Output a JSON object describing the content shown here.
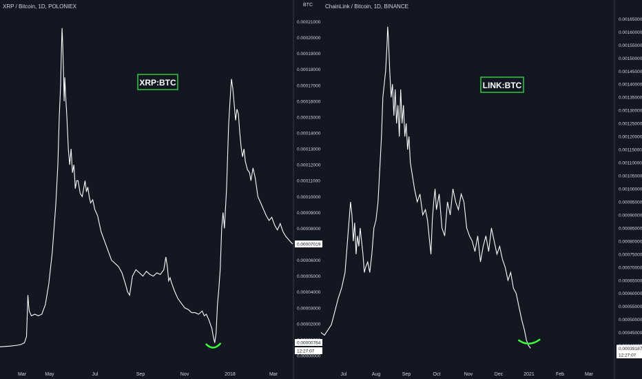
{
  "colors": {
    "background": "#131722",
    "line": "#ffffff",
    "axis_text": "#d1d4dc",
    "divider": "#363a45",
    "label_border": "#2ecc40",
    "annotation": "#3bff3b",
    "badge_bg": "#ffffff",
    "badge_text": "#131722"
  },
  "chart_data": [
    {
      "type": "line",
      "title": "XRP / Bitcoin, 1D, POLONIEX",
      "label_box": "XRP:BTC",
      "yaxis_unit": "BTC",
      "x_ticks": [
        "Mar",
        "May",
        "Jul",
        "Sep",
        "Nov",
        "2018",
        "Mar"
      ],
      "y_ticks": [
        "0.00021000",
        "0.00020000",
        "0.00019000",
        "0.00018000",
        "0.00017000",
        "0.00016000",
        "0.00015000",
        "0.00014000",
        "0.00013000",
        "0.00012000",
        "0.00011000",
        "0.00010000",
        "0.00009000",
        "0.00008000",
        "0.00007000",
        "0.00006000",
        "0.00005000",
        "0.00004000",
        "0.00003000",
        "0.00002000",
        "0.00001000",
        "0.00000000"
      ],
      "ylim": [
        0,
        0.000215
      ],
      "xlim": [
        0,
        420
      ],
      "price_badge": "0.00007019",
      "extra_badges": [
        "0.00000764",
        "12:27:07"
      ],
      "x": [
        0,
        15,
        25,
        30,
        35,
        38,
        40,
        41,
        42,
        45,
        50,
        55,
        60,
        65,
        70,
        75,
        80,
        83,
        85,
        87,
        88,
        89,
        90,
        91,
        92,
        93,
        94,
        96,
        98,
        100,
        102,
        104,
        106,
        108,
        110,
        112,
        115,
        118,
        120,
        122,
        124,
        126,
        128,
        130,
        133,
        136,
        140,
        145,
        150,
        155,
        160,
        165,
        170,
        175,
        180,
        183,
        186,
        190,
        195,
        200,
        205,
        210,
        215,
        220,
        225,
        230,
        235,
        238,
        240,
        242,
        244,
        246,
        250,
        255,
        260,
        265,
        270,
        275,
        280,
        285,
        290,
        293,
        296,
        300,
        304,
        306,
        308,
        310,
        312,
        314,
        316,
        318,
        320,
        322,
        325,
        328,
        330,
        332,
        334,
        336,
        338,
        340,
        342,
        344,
        346,
        348,
        350,
        352,
        355,
        358,
        360,
        363,
        366,
        370,
        374,
        378,
        382,
        386,
        390,
        394,
        398,
        402,
        406,
        410,
        414,
        418,
        420
      ],
      "y": [
        5.5e-06,
        6e-06,
        6.5e-06,
        7e-06,
        8e-06,
        1.2e-05,
        3.8e-05,
        3.2e-05,
        2.8e-05,
        2.5e-05,
        2.6e-05,
        2.5e-05,
        2.6e-05,
        3.2e-05,
        4.5e-05,
        6.5e-05,
        9.5e-05,
        0.00012,
        0.00015,
        0.00017,
        0.00019,
        0.000206,
        0.000195,
        0.00018,
        0.00016,
        0.000175,
        0.000165,
        0.00015,
        0.00013,
        0.00012,
        0.00013,
        0.000115,
        0.00012,
        0.000105,
        0.00011,
        0.00011,
        0.000102,
        0.0001,
        0.000105,
        0.00011,
        0.000103,
        0.000106,
        0.0001,
        9.6e-05,
        9.8e-05,
        9.2e-05,
        8.8e-05,
        7.8e-05,
        7.2e-05,
        6.6e-05,
        6e-05,
        5.8e-05,
        5.6e-05,
        5.2e-05,
        4.5e-05,
        4e-05,
        3.8e-05,
        5e-05,
        5.4e-05,
        5.2e-05,
        5e-05,
        5.3e-05,
        5.1e-05,
        5e-05,
        5.2e-05,
        5.1e-05,
        5.4e-05,
        6.2e-05,
        5.6e-05,
        4.7e-05,
        4.9e-05,
        4.6e-05,
        4.1e-05,
        3.6e-05,
        3.3e-05,
        3e-05,
        2.9e-05,
        2.7e-05,
        2.7e-05,
        2.6e-05,
        2.8e-05,
        2.5e-05,
        2.6e-05,
        2.2e-05,
        1.7e-05,
        1.2e-05,
        8e-06,
        1.4e-05,
        3.2e-05,
        4.2e-05,
        5.5e-05,
        8e-05,
        9e-05,
        8e-05,
        0.000105,
        0.000145,
        0.00016,
        0.000174,
        0.000168,
        0.000158,
        0.000148,
        0.000155,
        0.000152,
        0.00014,
        0.000131,
        0.000125,
        0.00013,
        0.000122,
        0.000117,
        0.000115,
        0.00011,
        0.000118,
        0.000112,
        0.0001,
        9.6e-05,
        9.2e-05,
        8.8e-05,
        8.5e-05,
        8.7e-05,
        8.2e-05,
        7.9e-05,
        8.3e-05,
        7.8e-05,
        7.5e-05,
        7.3e-05,
        7.1e-05,
        7.02e-05
      ],
      "annotation": {
        "type": "arc",
        "x": [
          296,
          316
        ],
        "y": 6.2e-06
      }
    },
    {
      "type": "line",
      "title": "ChainLink / Bitcoin, 1D, BINANCE",
      "label_box": "LINK:BTC",
      "x_ticks": [
        "Jul",
        "Aug",
        "Sep",
        "Oct",
        "Nov",
        "Dec",
        "2021",
        "Feb",
        "Mar"
      ],
      "y_ticks": [
        "0.00165000",
        "0.00160000",
        "0.00155000",
        "0.00150000",
        "0.00145000",
        "0.00140000",
        "0.00135000",
        "0.00130000",
        "0.00125000",
        "0.00120000",
        "0.00115000",
        "0.00110000",
        "0.00105000",
        "0.00100000",
        "0.00095000",
        "0.00090000",
        "0.00085000",
        "0.00080000",
        "0.00075000",
        "0.00070000",
        "0.00065000",
        "0.00060000",
        "0.00055000",
        "0.00050000",
        "0.00045000",
        "0.00040000"
      ],
      "ylim": [
        0.00037,
        0.00168
      ],
      "xlim": [
        0,
        425
      ],
      "price_badge": "0.00039187",
      "extra_badges": [
        "12:27:07"
      ],
      "x": [
        0,
        5,
        10,
        15,
        20,
        25,
        30,
        35,
        40,
        43,
        45,
        47,
        49,
        51,
        53,
        55,
        57,
        59,
        61,
        63,
        65,
        68,
        71,
        74,
        77,
        80,
        83,
        86,
        88,
        90,
        92,
        94,
        96,
        97,
        98,
        100,
        102,
        104,
        106,
        108,
        110,
        112,
        114,
        116,
        118,
        120,
        122,
        124,
        126,
        128,
        130,
        133,
        136,
        140,
        144,
        148,
        152,
        155,
        158,
        160,
        162,
        164,
        166,
        168,
        172,
        176,
        180,
        184,
        188,
        192,
        196,
        200,
        204,
        208,
        212,
        216,
        220,
        224,
        228,
        232,
        236,
        240,
        244,
        248,
        252,
        256,
        260,
        264,
        268,
        272,
        276,
        280,
        284,
        288,
        292,
        296,
        299,
        302,
        305
      ],
      "y": [
        0.00045,
        0.00044,
        0.00046,
        0.00048,
        0.00053,
        0.00058,
        0.00062,
        0.00068,
        0.00085,
        0.00095,
        0.0009,
        0.0008,
        0.00087,
        0.00075,
        0.00082,
        0.00078,
        0.00085,
        0.0008,
        0.00075,
        0.00068,
        0.0007,
        0.00072,
        0.00068,
        0.00075,
        0.00085,
        0.00088,
        0.00095,
        0.0011,
        0.0012,
        0.00135,
        0.0014,
        0.00145,
        0.00155,
        0.00162,
        0.00158,
        0.00145,
        0.00135,
        0.0014,
        0.00128,
        0.00138,
        0.00125,
        0.00132,
        0.0012,
        0.00138,
        0.00125,
        0.00132,
        0.0012,
        0.00125,
        0.00115,
        0.0012,
        0.0011,
        0.00105,
        0.001,
        0.00095,
        0.00098,
        0.0009,
        0.00092,
        0.00088,
        0.0008,
        0.00075,
        0.00088,
        0.00095,
        0.001,
        0.00092,
        0.00098,
        0.00085,
        0.00082,
        0.00095,
        0.0009,
        0.001,
        0.00095,
        0.00092,
        0.00098,
        0.00095,
        0.00085,
        0.00082,
        0.0008,
        0.00076,
        0.00082,
        0.00072,
        0.00078,
        0.00082,
        0.00076,
        0.00085,
        0.0008,
        0.00075,
        0.00078,
        0.00073,
        0.0007,
        0.00065,
        0.00068,
        0.00062,
        0.0006,
        0.00055,
        0.0005,
        0.00046,
        0.00042,
        0.0004,
        0.00039
      ],
      "annotation": {
        "type": "arc",
        "x": [
          288,
          318
        ],
        "y": 0.000415
      }
    }
  ]
}
